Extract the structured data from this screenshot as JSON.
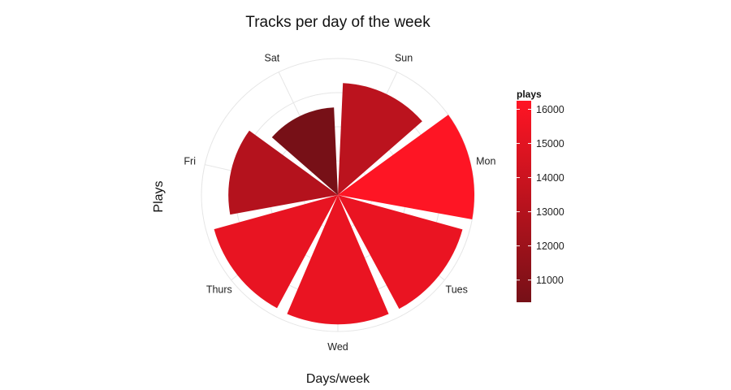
{
  "chart_data": {
    "type": "bar",
    "coord": "polar",
    "title": "Tracks per day of the week",
    "xlabel": "Days/week",
    "ylabel": "Plays",
    "categories": [
      "Sun",
      "Mon",
      "Tues",
      "Wed",
      "Thurs",
      "Fri",
      "Sat"
    ],
    "values": [
      13300,
      16200,
      15350,
      15350,
      15250,
      13000,
      10400
    ],
    "ylim": [
      0,
      16200
    ],
    "grid": true,
    "legend": {
      "title": "plays",
      "placement": "right",
      "ticks": [
        11000,
        12000,
        13000,
        14000,
        15000,
        16000
      ],
      "range": [
        10350,
        16250
      ],
      "colors": {
        "low": "#761017",
        "high": "#ff1524"
      }
    }
  }
}
